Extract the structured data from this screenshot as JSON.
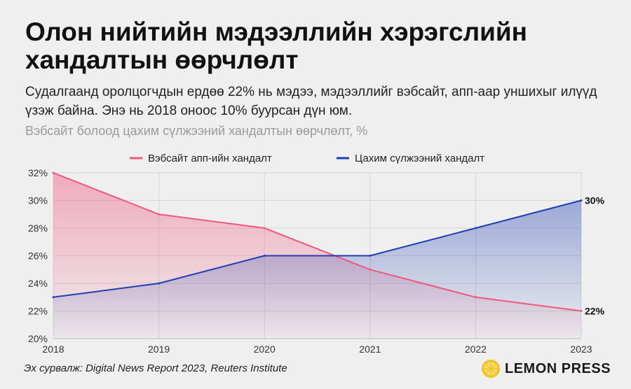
{
  "header": {
    "title": "Олон нийтийн мэдээллийн хэрэгслийн хандалтын өөрчлөлт",
    "subtitle": "Судалгаанд оролцогчдын ердөө 22% нь мэдээ, мэдээллийг вэбсайт, апп-аар уншихыг илүүд үзэж байна. Энэ нь 2018 оноос 10% буурсан дүн юм."
  },
  "footer": {
    "source": "Эх сурвалж: Digital News Report 2023, Reuters Institute",
    "logo_text": "LEMON PRESS",
    "logo_icon": "lemon-icon"
  },
  "chart_data": {
    "type": "area",
    "title": "Вэбсайт болоод цахим сүлжээний хандалтын өөрчлөлт, %",
    "xlabel": "",
    "ylabel": "",
    "x": [
      "2018",
      "2019",
      "2020",
      "2021",
      "2022",
      "2023"
    ],
    "ylim": [
      20,
      32
    ],
    "yticks": [
      20,
      22,
      24,
      26,
      28,
      30,
      32
    ],
    "ytick_labels": [
      "20%",
      "22%",
      "24%",
      "26%",
      "28%",
      "30%",
      "32%"
    ],
    "grid": true,
    "legend_position": "top",
    "series": [
      {
        "name": "Вэбсайт апп-ийн хандалт",
        "values": [
          32,
          29,
          28,
          25,
          23,
          22
        ],
        "color": "#f0577f",
        "end_label": "22%"
      },
      {
        "name": "Цахим сүлжээний хандалт",
        "values": [
          23,
          24,
          26,
          26,
          28,
          30
        ],
        "color": "#1f3fb0",
        "end_label": "30%"
      }
    ]
  }
}
